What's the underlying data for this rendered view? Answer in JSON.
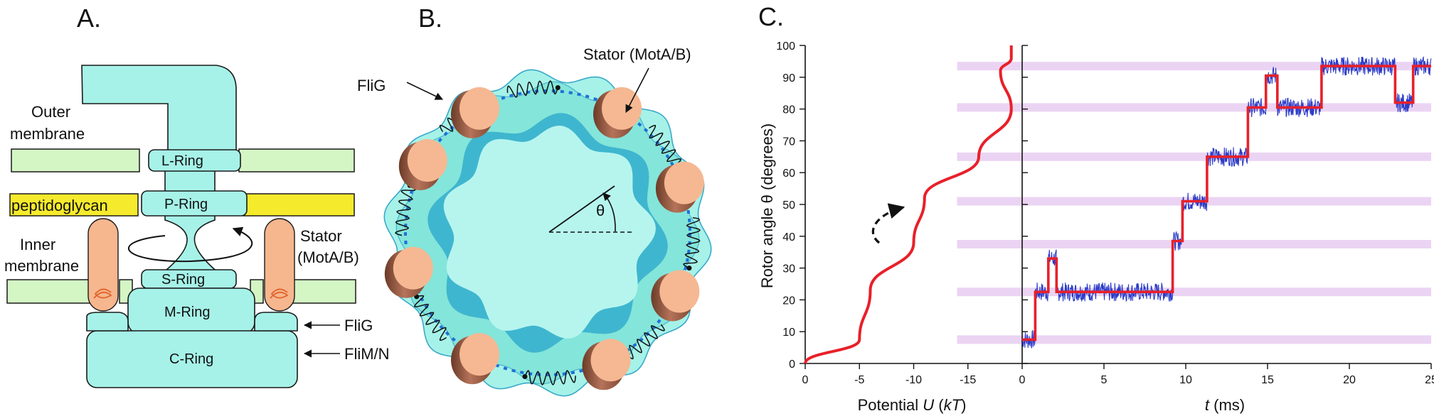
{
  "panelA": {
    "label": "A.",
    "outer_membrane": [
      "Outer",
      "membrane"
    ],
    "peptidoglycan": "peptidoglycan",
    "inner_membrane": [
      "Inner",
      "membrane"
    ],
    "stator": [
      "Stator",
      "(MotA/B)"
    ],
    "rings": {
      "l": "L-Ring",
      "p": "P-Ring",
      "s": "S-Ring",
      "m": "M-Ring",
      "c": "C-Ring"
    },
    "flig": "FliG",
    "flimn": "FliM/N"
  },
  "panelB": {
    "label": "B.",
    "flig": "FliG",
    "stator": "Stator (MotA/B)",
    "theta": "θ"
  },
  "panelC": {
    "label": "C.",
    "y_title": "Rotor angle θ (degrees)",
    "potential_title_pre": "Potential ",
    "potential_title_u": "U",
    "potential_title_unit_open": " (",
    "potential_title_kt": "kT",
    "potential_title_close": ")",
    "time_title_t": "t",
    "time_title_rest": " (ms)"
  },
  "chart_data": [
    {
      "type": "line",
      "name": "potential",
      "xlabel": "Potential U (kT)",
      "ylabel": "Rotor angle θ (degrees)",
      "xlim": [
        0,
        -20
      ],
      "ylim": [
        0,
        100
      ],
      "x_ticks": [
        "0",
        "-5",
        "-10",
        "-15"
      ],
      "y_ticks": [
        "0",
        "10",
        "20",
        "30",
        "40",
        "50",
        "60",
        "70",
        "80",
        "90",
        "100"
      ],
      "x": [
        0,
        -5,
        -6,
        -10,
        -11,
        -16,
        -19,
        -18,
        -19,
        -19
      ],
      "y": [
        0,
        7.5,
        23,
        38,
        52,
        65,
        80,
        92,
        96,
        100
      ]
    },
    {
      "type": "line",
      "name": "time trace",
      "xlabel": "t (ms)",
      "ylabel": "Rotor angle θ (degrees)",
      "xlim": [
        0,
        25
      ],
      "ylim": [
        0,
        100
      ],
      "x_ticks": [
        "0",
        "5",
        "10",
        "15",
        "20",
        "25"
      ],
      "stable_angles": [
        7.5,
        22.5,
        37.5,
        51,
        65,
        80.5,
        93.5
      ],
      "steps": {
        "t": [
          0,
          0.8,
          1.6,
          2.1,
          9.2,
          9.8,
          11.3,
          13.8,
          14.9,
          15.6,
          18.3,
          22.8,
          23.9,
          25
        ],
        "theta": [
          7.5,
          22.5,
          33,
          22.5,
          38.5,
          51,
          65,
          80.5,
          90.5,
          80.5,
          93.5,
          82,
          93.5,
          93.5
        ]
      }
    }
  ],
  "colors": {
    "teal": "#a6f2e8",
    "green": "#d4f5c4",
    "yellow": "#f6ea2c",
    "stator": "#f6b68e",
    "red": "#e8202a",
    "blue": "#2b3cc8",
    "stripe": "#e7cdf1"
  }
}
